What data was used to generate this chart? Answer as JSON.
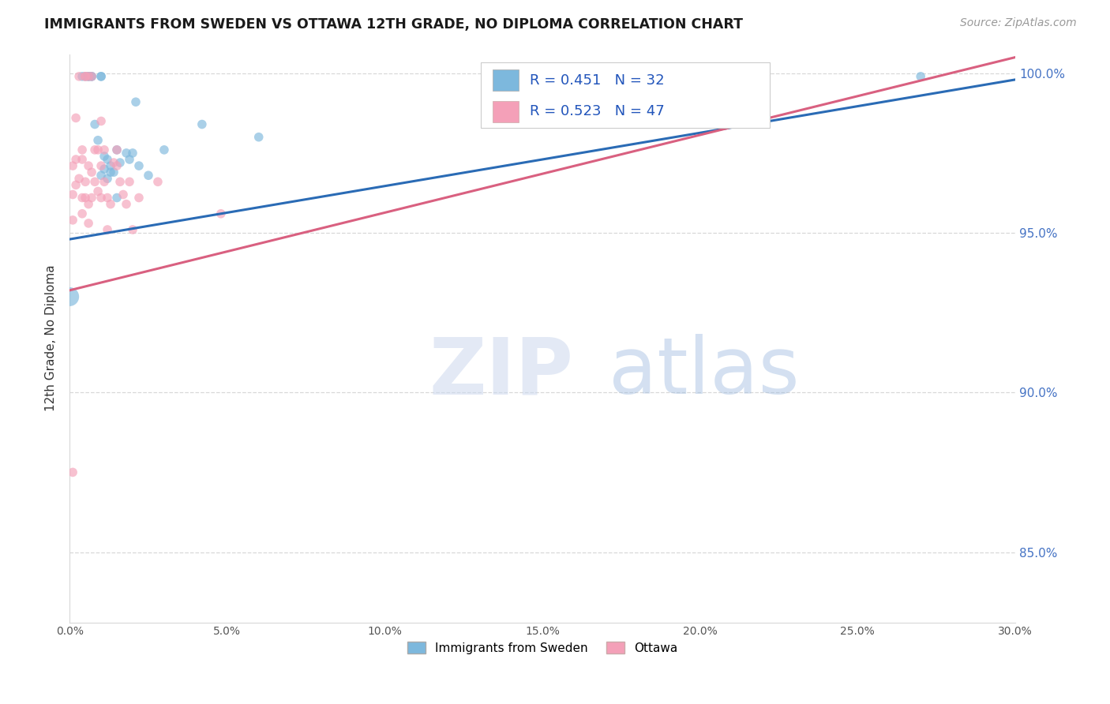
{
  "title": "IMMIGRANTS FROM SWEDEN VS OTTAWA 12TH GRADE, NO DIPLOMA CORRELATION CHART",
  "source": "Source: ZipAtlas.com",
  "ylabel": "12th Grade, No Diploma",
  "yticks": [
    "100.0%",
    "95.0%",
    "90.0%",
    "85.0%"
  ],
  "ytick_vals": [
    1.0,
    0.95,
    0.9,
    0.85
  ],
  "legend_label1": "Immigrants from Sweden",
  "legend_label2": "Ottawa",
  "R1": 0.451,
  "N1": 32,
  "R2": 0.523,
  "N2": 47,
  "color_blue": "#7db8dd",
  "color_pink": "#f4a0b8",
  "color_blue_line": "#2a6bb5",
  "color_pink_line": "#d96080",
  "watermark_zip": "ZIP",
  "watermark_atlas": "atlas",
  "blue_line_x": [
    0.0,
    0.3
  ],
  "blue_line_y": [
    0.948,
    0.998
  ],
  "pink_line_x": [
    0.0,
    0.3
  ],
  "pink_line_y": [
    0.932,
    1.005
  ],
  "sweden_points": [
    [
      0.0,
      0.93
    ],
    [
      0.004,
      0.999
    ],
    [
      0.005,
      0.999
    ],
    [
      0.006,
      0.999
    ],
    [
      0.006,
      0.999
    ],
    [
      0.007,
      0.999
    ],
    [
      0.007,
      0.999
    ],
    [
      0.008,
      0.984
    ],
    [
      0.009,
      0.979
    ],
    [
      0.01,
      0.999
    ],
    [
      0.01,
      0.999
    ],
    [
      0.01,
      0.968
    ],
    [
      0.011,
      0.974
    ],
    [
      0.011,
      0.97
    ],
    [
      0.012,
      0.973
    ],
    [
      0.012,
      0.967
    ],
    [
      0.013,
      0.971
    ],
    [
      0.013,
      0.969
    ],
    [
      0.014,
      0.969
    ],
    [
      0.015,
      0.976
    ],
    [
      0.015,
      0.961
    ],
    [
      0.016,
      0.972
    ],
    [
      0.018,
      0.975
    ],
    [
      0.019,
      0.973
    ],
    [
      0.02,
      0.975
    ],
    [
      0.021,
      0.991
    ],
    [
      0.022,
      0.971
    ],
    [
      0.025,
      0.968
    ],
    [
      0.03,
      0.976
    ],
    [
      0.042,
      0.984
    ],
    [
      0.06,
      0.98
    ],
    [
      0.27,
      0.999
    ]
  ],
  "ottawa_points": [
    [
      0.001,
      0.971
    ],
    [
      0.001,
      0.962
    ],
    [
      0.001,
      0.954
    ],
    [
      0.002,
      0.965
    ],
    [
      0.002,
      0.973
    ],
    [
      0.002,
      0.986
    ],
    [
      0.003,
      0.999
    ],
    [
      0.003,
      0.967
    ],
    [
      0.004,
      0.976
    ],
    [
      0.004,
      0.973
    ],
    [
      0.004,
      0.961
    ],
    [
      0.004,
      0.956
    ],
    [
      0.005,
      0.999
    ],
    [
      0.005,
      0.999
    ],
    [
      0.005,
      0.966
    ],
    [
      0.005,
      0.961
    ],
    [
      0.006,
      0.999
    ],
    [
      0.006,
      0.971
    ],
    [
      0.006,
      0.959
    ],
    [
      0.006,
      0.953
    ],
    [
      0.007,
      0.999
    ],
    [
      0.007,
      0.969
    ],
    [
      0.007,
      0.961
    ],
    [
      0.008,
      0.976
    ],
    [
      0.008,
      0.966
    ],
    [
      0.009,
      0.976
    ],
    [
      0.009,
      0.963
    ],
    [
      0.01,
      0.985
    ],
    [
      0.01,
      0.971
    ],
    [
      0.01,
      0.961
    ],
    [
      0.011,
      0.966
    ],
    [
      0.011,
      0.976
    ],
    [
      0.012,
      0.961
    ],
    [
      0.012,
      0.951
    ],
    [
      0.013,
      0.959
    ],
    [
      0.014,
      0.972
    ],
    [
      0.015,
      0.976
    ],
    [
      0.015,
      0.971
    ],
    [
      0.016,
      0.966
    ],
    [
      0.017,
      0.962
    ],
    [
      0.018,
      0.959
    ],
    [
      0.019,
      0.966
    ],
    [
      0.02,
      0.951
    ],
    [
      0.022,
      0.961
    ],
    [
      0.028,
      0.966
    ],
    [
      0.048,
      0.956
    ],
    [
      0.001,
      0.875
    ]
  ],
  "xlim": [
    0.0,
    0.3
  ],
  "ylim": [
    0.828,
    1.006
  ],
  "xtick_vals": [
    0.0,
    0.05,
    0.1,
    0.15,
    0.2,
    0.25,
    0.3
  ],
  "grid_color": "#d8d8d8",
  "bg_color": "#ffffff"
}
